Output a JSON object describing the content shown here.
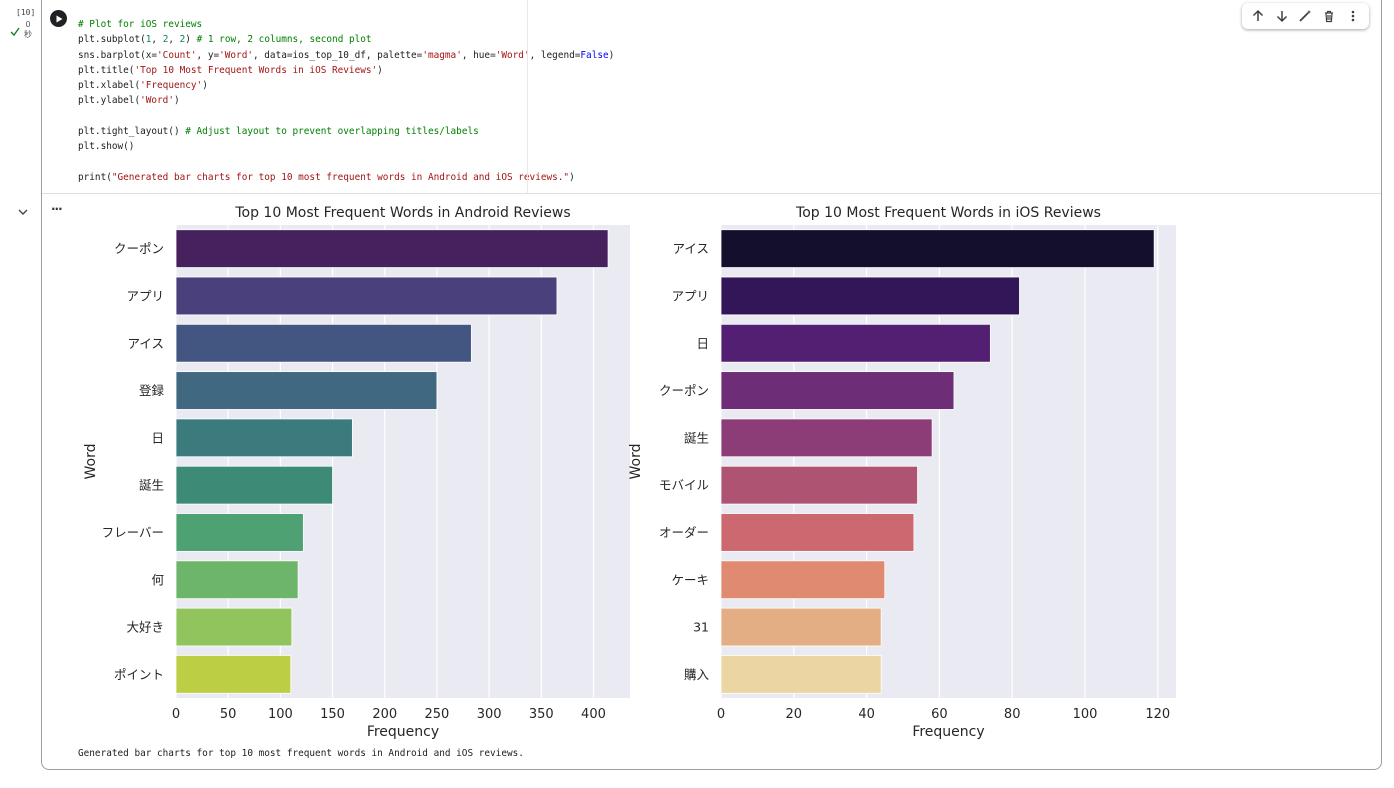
{
  "cell": {
    "execution_count": "[10]",
    "execution_time": "0\n秒",
    "code_lines": [
      [
        {
          "t": "# Plot for iOS reviews",
          "c": "c-com"
        }
      ],
      [
        {
          "t": "plt.subplot(",
          "c": ""
        },
        {
          "t": "1",
          "c": "c-num"
        },
        {
          "t": ", ",
          "c": ""
        },
        {
          "t": "2",
          "c": "c-num"
        },
        {
          "t": ", ",
          "c": ""
        },
        {
          "t": "2",
          "c": "c-num"
        },
        {
          "t": ") ",
          "c": ""
        },
        {
          "t": "# 1 row, 2 columns, second plot",
          "c": "c-com"
        }
      ],
      [
        {
          "t": "sns.barplot(x=",
          "c": ""
        },
        {
          "t": "'Count'",
          "c": "c-str"
        },
        {
          "t": ", y=",
          "c": ""
        },
        {
          "t": "'Word'",
          "c": "c-str"
        },
        {
          "t": ", data=ios_top_10_df, palette=",
          "c": ""
        },
        {
          "t": "'magma'",
          "c": "c-str"
        },
        {
          "t": ", hue=",
          "c": ""
        },
        {
          "t": "'Word'",
          "c": "c-str"
        },
        {
          "t": ", legend=",
          "c": ""
        },
        {
          "t": "False",
          "c": "c-kw"
        },
        {
          "t": ")",
          "c": ""
        }
      ],
      [
        {
          "t": "plt.title(",
          "c": ""
        },
        {
          "t": "'Top 10 Most Frequent Words in iOS Reviews'",
          "c": "c-str"
        },
        {
          "t": ")",
          "c": ""
        }
      ],
      [
        {
          "t": "plt.xlabel(",
          "c": ""
        },
        {
          "t": "'Frequency'",
          "c": "c-str"
        },
        {
          "t": ")",
          "c": ""
        }
      ],
      [
        {
          "t": "plt.ylabel(",
          "c": ""
        },
        {
          "t": "'Word'",
          "c": "c-str"
        },
        {
          "t": ")",
          "c": ""
        }
      ],
      [],
      [
        {
          "t": "plt.tight_layout() ",
          "c": ""
        },
        {
          "t": "# Adjust layout to prevent overlapping titles/labels",
          "c": "c-com"
        }
      ],
      [
        {
          "t": "plt.show()",
          "c": ""
        }
      ],
      [],
      [
        {
          "t": "print(",
          "c": ""
        },
        {
          "t": "\"Generated bar charts for top 10 most frequent words in Android and iOS reviews.\"",
          "c": "c-str"
        },
        {
          "t": ")",
          "c": ""
        }
      ]
    ],
    "print_output": "Generated bar charts for top 10 most frequent words in Android and iOS reviews."
  },
  "toolbar": {
    "icons": [
      "arrow-up-icon",
      "arrow-down-icon",
      "magic-edit-icon",
      "trash-icon",
      "more-vert-icon"
    ]
  },
  "output": {
    "menu_label": "..."
  },
  "chart_data": [
    {
      "type": "bar",
      "orientation": "horizontal",
      "title": "Top 10 Most Frequent Words in Android Reviews",
      "xlabel": "Frequency",
      "ylabel": "Word",
      "categories": [
        "クーポン",
        "アプリ",
        "アイス",
        "登録",
        "日",
        "誕生",
        "フレーバー",
        "何",
        "大好き",
        "ポイント"
      ],
      "values": [
        414,
        365,
        283,
        250,
        169,
        150,
        122,
        117,
        111,
        110
      ],
      "colors": [
        "#46215e",
        "#4a407c",
        "#435581",
        "#406981",
        "#3b7b7e",
        "#3d8b77",
        "#4ea173",
        "#6cb56a",
        "#92c45e",
        "#bccf44"
      ],
      "xlim": [
        0,
        435
      ],
      "xticks": [
        0,
        50,
        100,
        150,
        200,
        250,
        300,
        350,
        400
      ],
      "grid": true
    },
    {
      "type": "bar",
      "orientation": "horizontal",
      "title": "Top 10 Most Frequent Words in iOS Reviews",
      "xlabel": "Frequency",
      "ylabel": "Word",
      "categories": [
        "アイス",
        "アプリ",
        "日",
        "クーポン",
        "誕生",
        "モバイル",
        "オーダー",
        "ケーキ",
        "31",
        "購入"
      ],
      "values": [
        119,
        82,
        74,
        64,
        58,
        54,
        53,
        45,
        44,
        44
      ],
      "colors": [
        "#130f2c",
        "#321657",
        "#521f72",
        "#6e2d77",
        "#8c3d78",
        "#ae5472",
        "#cc6970",
        "#df8a71",
        "#e4ae85",
        "#ebd5a2"
      ],
      "xlim": [
        0,
        125
      ],
      "xticks": [
        0,
        20,
        40,
        60,
        80,
        100,
        120
      ],
      "grid": true
    }
  ]
}
